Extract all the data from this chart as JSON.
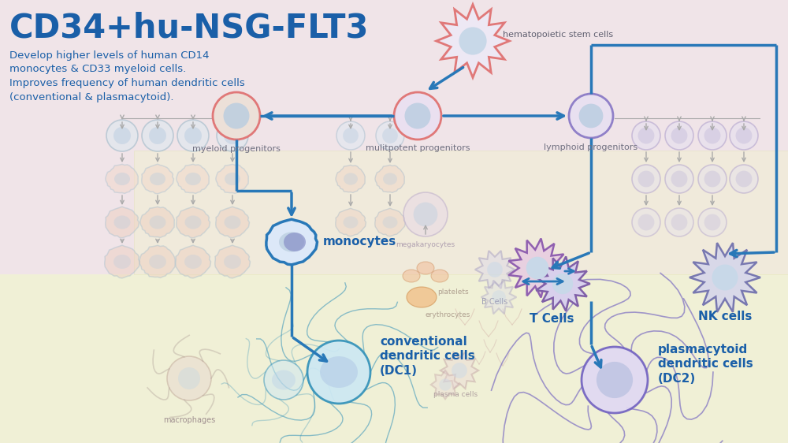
{
  "title": "CD34+hu-NSG-FLT3",
  "subtitle_lines": [
    "Develop higher levels of human CD14",
    "monocytes & CD33 myeloid cells.",
    "Improves frequency of human dendritic cells",
    "(conventional & plasmacytoid)."
  ],
  "bg_top": "#f0e4e8",
  "bg_bottom": "#f2f0d8",
  "title_color": "#1a5fa8",
  "blue": "#2878b8",
  "gray": "#aaaaaa"
}
